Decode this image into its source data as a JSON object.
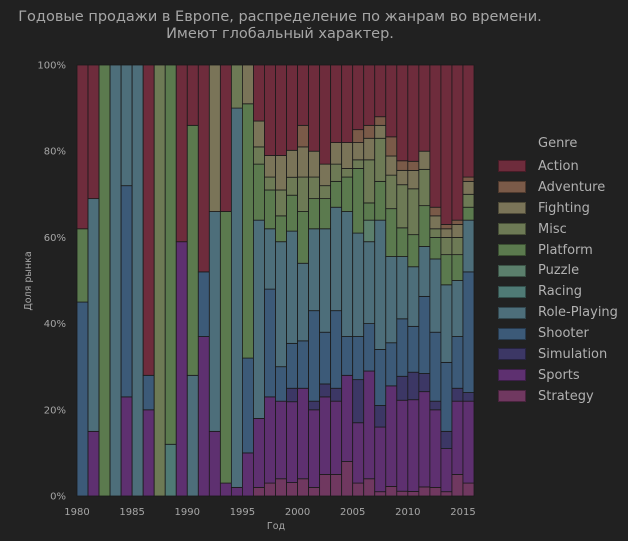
{
  "title_line1": "Годовые продажи в Европе, распределение по жанрам во времени.",
  "title_line2": "Имеют глобальный характер.",
  "chart_data": {
    "type": "bar",
    "stacked": "percent",
    "xlabel": "Год",
    "ylabel": "Доля рынка",
    "xlim": [
      1980,
      2016
    ],
    "ylim": [
      0,
      100
    ],
    "x_ticks": [
      "1980",
      "1985",
      "1990",
      "1995",
      "2000",
      "2005",
      "2010",
      "2015"
    ],
    "y_ticks": [
      "0%",
      "20%",
      "40%",
      "60%",
      "80%",
      "100%"
    ],
    "legend_title": "Genre",
    "legend_position": "right",
    "genres": [
      "Action",
      "Adventure",
      "Fighting",
      "Misc",
      "Platform",
      "Puzzle",
      "Racing",
      "Role-Playing",
      "Shooter",
      "Simulation",
      "Sports",
      "Strategy"
    ],
    "colors": {
      "Action": "#6e2c3c",
      "Adventure": "#7a5a48",
      "Fighting": "#7a7458",
      "Misc": "#6d7a55",
      "Platform": "#5b7a4e",
      "Puzzle": "#5b7f6c",
      "Racing": "#4f7a75",
      "Role-Playing": "#4d6e7a",
      "Shooter": "#3c5a78",
      "Simulation": "#3c3765",
      "Sports": "#5e3070",
      "Strategy": "#703860"
    },
    "years": [
      1980,
      1981,
      1982,
      1983,
      1984,
      1985,
      1986,
      1987,
      1988,
      1989,
      1990,
      1991,
      1992,
      1993,
      1994,
      1995,
      1996,
      1997,
      1998,
      1999,
      2000,
      2001,
      2002,
      2003,
      2004,
      2005,
      2006,
      2007,
      2008,
      2009,
      2010,
      2011,
      2012,
      2013,
      2014,
      2015
    ],
    "shares": {
      "Action": [
        38,
        31,
        0,
        0,
        0,
        0,
        72,
        0,
        0,
        41,
        14,
        48,
        0,
        34,
        0,
        0,
        13,
        21,
        21,
        19,
        14,
        20,
        23,
        18,
        18,
        15,
        14,
        12,
        15,
        20,
        21,
        19,
        33,
        37,
        36,
        26
      ],
      "Adventure": [
        0,
        0,
        0,
        0,
        0,
        0,
        0,
        0,
        0,
        0,
        0,
        0,
        0,
        0,
        0,
        0,
        0,
        0,
        0,
        0,
        5,
        0,
        0,
        0,
        0,
        3,
        3,
        2,
        4,
        2,
        2,
        0,
        2,
        1,
        1,
        1
      ],
      "Fighting": [
        0,
        0,
        0,
        0,
        0,
        0,
        0,
        0,
        0,
        0,
        0,
        0,
        34,
        0,
        0,
        9,
        6,
        5,
        8,
        6,
        7,
        6,
        5,
        5,
        6,
        4,
        5,
        3,
        4,
        3,
        4,
        4,
        3,
        2,
        3,
        3
      ],
      "Misc": [
        0,
        0,
        0,
        0,
        0,
        0,
        0,
        100,
        0,
        0,
        0,
        0,
        0,
        0,
        10,
        0,
        4,
        3,
        6,
        4,
        8,
        5,
        3,
        4,
        2,
        2,
        10,
        10,
        7,
        9,
        10,
        8,
        2,
        4,
        4,
        3
      ],
      "Platform": [
        17,
        0,
        100,
        0,
        0,
        0,
        0,
        0,
        88,
        0,
        58,
        0,
        0,
        63,
        0,
        59,
        13,
        9,
        6,
        8,
        12,
        7,
        7,
        6,
        8,
        15,
        4,
        9,
        10,
        6,
        7,
        9,
        5,
        7,
        6,
        3
      ],
      "Puzzle": [
        0,
        0,
        0,
        0,
        0,
        0,
        0,
        0,
        0,
        0,
        0,
        0,
        0,
        0,
        0,
        0,
        0,
        0,
        0,
        0,
        0,
        0,
        0,
        0,
        0,
        0,
        5,
        0,
        0,
        0,
        0,
        0,
        0,
        0,
        0,
        0
      ],
      "Racing": [
        0,
        0,
        0,
        0,
        0,
        0,
        0,
        0,
        12,
        0,
        0,
        0,
        0,
        0,
        0,
        0,
        0,
        0,
        0,
        0,
        0,
        0,
        0,
        0,
        0,
        0,
        0,
        0,
        0,
        0,
        0,
        0,
        0,
        0,
        0,
        0
      ],
      "Role-Playing": [
        0,
        54,
        0,
        100,
        28,
        100,
        0,
        0,
        0,
        0,
        28,
        0,
        51,
        0,
        88,
        0,
        46,
        14,
        29,
        25,
        18,
        19,
        24,
        24,
        29,
        24,
        19,
        30,
        18,
        13,
        13,
        11,
        17,
        18,
        13,
        12
      ],
      "Shooter": [
        45,
        0,
        0,
        0,
        49,
        0,
        8,
        0,
        0,
        0,
        0,
        15,
        0,
        0,
        0,
        22,
        0,
        25,
        8,
        10,
        11,
        21,
        12,
        18,
        9,
        10,
        11,
        13,
        9,
        12,
        10,
        17,
        16,
        16,
        12,
        28
      ],
      "Simulation": [
        0,
        0,
        0,
        0,
        0,
        0,
        0,
        0,
        0,
        0,
        0,
        0,
        0,
        0,
        0,
        0,
        0,
        0,
        0,
        3,
        0,
        2,
        3,
        3,
        0,
        10,
        0,
        5,
        0,
        5,
        6,
        4,
        2,
        4,
        3,
        2
      ],
      "Sports": [
        0,
        15,
        0,
        0,
        23,
        0,
        20,
        0,
        0,
        59,
        0,
        37,
        15,
        3,
        2,
        10,
        16,
        20,
        18,
        18,
        21,
        18,
        18,
        17,
        20,
        14,
        25,
        15,
        21,
        19,
        20,
        21,
        18,
        10,
        17,
        19
      ],
      "Strategy": [
        0,
        0,
        0,
        0,
        0,
        0,
        0,
        0,
        0,
        0,
        0,
        0,
        0,
        0,
        0,
        0,
        2,
        3,
        4,
        3,
        4,
        2,
        5,
        5,
        8,
        3,
        4,
        1,
        2,
        1,
        1,
        2,
        2,
        1,
        5,
        3
      ]
    }
  }
}
